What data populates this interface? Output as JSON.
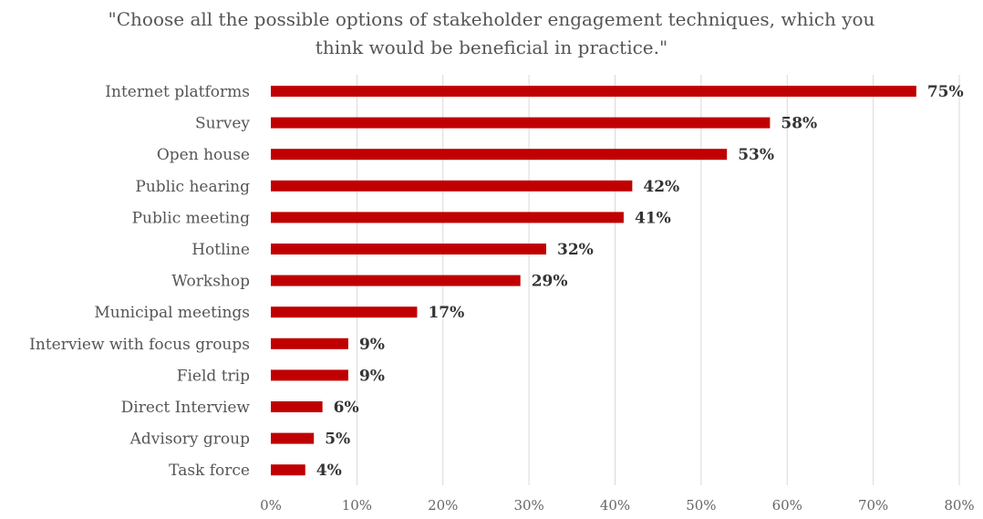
{
  "chart_data": {
    "type": "bar",
    "orientation": "horizontal",
    "title_lines": [
      "\"Choose all the possible options of stakeholder engagement techniques, which you",
      "think would be beneficial in practice.\""
    ],
    "categories": [
      "Internet platforms",
      "Survey",
      "Open house",
      "Public hearing",
      "Public meeting",
      "Hotline",
      "Workshop",
      "Municipal meetings",
      "Interview with focus groups",
      "Field trip",
      "Direct Interview",
      "Advisory group",
      "Task force"
    ],
    "values": [
      75,
      58,
      53,
      42,
      41,
      32,
      29,
      17,
      9,
      9,
      6,
      5,
      4
    ],
    "data_labels": [
      "75%",
      "58%",
      "53%",
      "42%",
      "41%",
      "32%",
      "29%",
      "17%",
      "9%",
      "9%",
      "6%",
      "5%",
      "4%"
    ],
    "xlim": [
      0,
      80
    ],
    "x_ticks": [
      0,
      10,
      20,
      30,
      40,
      50,
      60,
      70,
      80
    ],
    "x_tick_labels": [
      "0%",
      "10%",
      "20%",
      "30%",
      "40%",
      "50%",
      "60%",
      "70%",
      "80%"
    ],
    "grid": true,
    "legend": "none",
    "bar_color": "#c00000"
  }
}
